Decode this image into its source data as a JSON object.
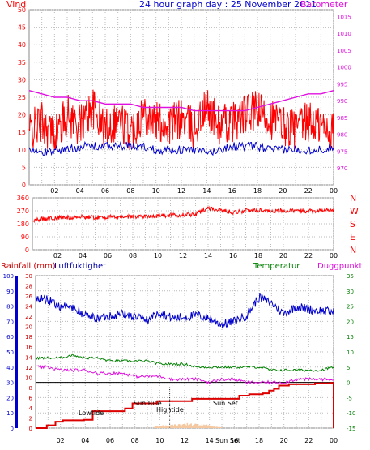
{
  "chart_data": [
    {
      "panel": "wind-barometer",
      "type": "line",
      "title": "24 hour graph day : 25 November 2011",
      "left_label": "Vind",
      "right_label": "Barometer",
      "x_ticks": [
        "02",
        "04",
        "06",
        "08",
        "10",
        "12",
        "14",
        "16",
        "18",
        "20",
        "22",
        "00"
      ],
      "left_ticks": [
        0,
        5,
        10,
        15,
        20,
        25,
        30,
        35,
        40,
        45,
        50
      ],
      "right_ticks": [
        970,
        975,
        980,
        985,
        990,
        995,
        1000,
        1005,
        1010,
        1015
      ],
      "ylim_left": [
        0,
        50
      ],
      "ylim_right": [
        965,
        1017
      ],
      "grid": true,
      "colors": {
        "gust": "#ff0000",
        "wind": "#0000cc",
        "barometer": "#e010e0",
        "left_axis": "#ff0000",
        "right_axis": "#e010e0",
        "title": "#0000cc"
      },
      "series": [
        {
          "key": "gust",
          "x": [
            0,
            1,
            2,
            3,
            4,
            5,
            6,
            7,
            8,
            9,
            10,
            11,
            12,
            13,
            14,
            15,
            16,
            17,
            18,
            19,
            20,
            21,
            22,
            23,
            24
          ],
          "values": [
            15,
            18,
            14,
            20,
            17,
            22,
            16,
            19,
            15,
            21,
            18,
            17,
            19,
            16,
            22,
            17,
            18,
            20,
            21,
            19,
            17,
            16,
            18,
            17,
            15
          ],
          "range": [
            10,
            26
          ]
        },
        {
          "key": "wind",
          "x": [
            0,
            1,
            2,
            3,
            4,
            5,
            6,
            7,
            8,
            9,
            10,
            11,
            12,
            13,
            14,
            15,
            16,
            17,
            18,
            19,
            20,
            21,
            22,
            23,
            24
          ],
          "values": [
            10,
            9,
            10,
            10,
            11,
            11,
            11,
            11,
            11,
            11,
            10,
            10,
            10,
            10,
            9,
            10,
            11,
            11,
            11,
            10,
            10,
            10,
            10,
            10,
            11
          ]
        },
        {
          "key": "barometer",
          "x": [
            0,
            1,
            2,
            3,
            4,
            5,
            6,
            7,
            8,
            9,
            10,
            11,
            12,
            13,
            14,
            15,
            16,
            17,
            18,
            19,
            20,
            21,
            22,
            23,
            24
          ],
          "values": [
            993,
            992,
            991,
            991,
            990,
            990,
            989,
            989,
            989,
            988,
            988,
            988,
            988,
            987,
            987,
            987,
            987,
            987,
            988,
            989,
            990,
            991,
            992,
            992,
            993
          ]
        }
      ]
    },
    {
      "panel": "wind-direction",
      "type": "scatter",
      "x_ticks": [
        "02",
        "04",
        "06",
        "08",
        "10",
        "12",
        "14",
        "16",
        "18",
        "20",
        "22",
        "00"
      ],
      "left_ticks": [
        0,
        90,
        180,
        270,
        360
      ],
      "right_letters": [
        "N",
        "W",
        "S",
        "E",
        "N"
      ],
      "ylim": [
        0,
        360
      ],
      "grid": true,
      "colors": {
        "direction": "#ff0000",
        "axis": "#ff0000"
      },
      "series": [
        {
          "key": "direction",
          "x": [
            0,
            1,
            2,
            3,
            4,
            5,
            6,
            7,
            8,
            9,
            10,
            11,
            12,
            13,
            14,
            15,
            16,
            17,
            18,
            19,
            20,
            21,
            22,
            23,
            24
          ],
          "values": [
            205,
            215,
            220,
            225,
            228,
            225,
            225,
            228,
            230,
            232,
            235,
            238,
            240,
            245,
            290,
            275,
            260,
            270,
            275,
            270,
            270,
            268,
            270,
            272,
            275
          ]
        }
      ]
    },
    {
      "panel": "rain-humidity-temperature",
      "type": "line",
      "left_label": "Rainfall (mm)",
      "left_label2": "Luftfuktighet",
      "right_label": "Temperatur",
      "right_label2": "Duggpunkt",
      "x_ticks": [
        "02",
        "04",
        "06",
        "08",
        "10",
        "12",
        "14",
        "16",
        "18",
        "20",
        "22",
        "00"
      ],
      "humidity_ticks": [
        0,
        10,
        20,
        30,
        40,
        50,
        60,
        70,
        80,
        90,
        100
      ],
      "temp_ticks": [
        -15,
        -10,
        -5,
        0,
        5,
        10,
        15,
        20,
        25,
        30,
        35
      ],
      "rain_ticks": [
        0,
        2,
        4,
        6,
        8,
        10,
        12,
        14,
        16,
        18,
        20,
        22,
        24,
        26,
        28,
        30
      ],
      "ylim_humidity": [
        0,
        100
      ],
      "ylim_temp": [
        -15,
        35
      ],
      "ylim_rain_scale": [
        0,
        30
      ],
      "ylim_rain_lower": [
        0,
        10
      ],
      "annotations": [
        "Lowtide",
        "Sun Rise",
        "Hightide",
        "Sun Set",
        "Sun Set"
      ],
      "colors": {
        "humidity": "#0000cc",
        "temperature": "#008000",
        "dewpoint": "#e010e0",
        "rain": "#dd0000",
        "solar": "#f5c8a0",
        "rainfall_label": "#cc0000",
        "humidity_label": "#0000cc",
        "temp_label": "#008000",
        "dew_label": "#e010e0"
      },
      "series": [
        {
          "key": "humidity",
          "x": [
            0,
            1,
            2,
            3,
            4,
            5,
            6,
            7,
            8,
            9,
            10,
            11,
            12,
            13,
            14,
            15,
            16,
            17,
            18,
            19,
            20,
            21,
            22,
            23,
            24
          ],
          "values": [
            85,
            84,
            80,
            79,
            74,
            72,
            74,
            75,
            73,
            71,
            76,
            72,
            73,
            74,
            72,
            68,
            70,
            74,
            86,
            82,
            75,
            80,
            78,
            77,
            76
          ]
        },
        {
          "key": "temperature",
          "x": [
            0,
            1,
            2,
            3,
            4,
            5,
            6,
            7,
            8,
            9,
            10,
            11,
            12,
            13,
            14,
            15,
            16,
            17,
            18,
            19,
            20,
            21,
            22,
            23,
            24
          ],
          "values": [
            8,
            8,
            8,
            9,
            8,
            8,
            7,
            7,
            7,
            7,
            6,
            6,
            6,
            5,
            5,
            5,
            5,
            5,
            5,
            4,
            4,
            4,
            4,
            4,
            5
          ]
        },
        {
          "key": "dewpoint",
          "x": [
            0,
            1,
            2,
            3,
            4,
            5,
            6,
            7,
            8,
            9,
            10,
            11,
            12,
            13,
            14,
            15,
            16,
            17,
            18,
            19,
            20,
            21,
            22,
            23,
            24
          ],
          "values": [
            5,
            5,
            4,
            4,
            4,
            3,
            3,
            3,
            2,
            2,
            2,
            1,
            1,
            1,
            0,
            1,
            1,
            0,
            0,
            0,
            0,
            1,
            1,
            1,
            1
          ]
        },
        {
          "key": "rain",
          "x": [
            0,
            0.9,
            1.6,
            2.2,
            3.9,
            4.6,
            7.2,
            7.8,
            9.8,
            12.6,
            16.4,
            17.2,
            18.3,
            18.8,
            19.2,
            19.6,
            20.4,
            22.5,
            23.8,
            24
          ],
          "values": [
            0,
            0.6,
            1.4,
            1.7,
            1.8,
            3.7,
            4.3,
            5.4,
            5.9,
            6.4,
            7.1,
            7.4,
            7.6,
            8.2,
            8.6,
            9.3,
            9.6,
            9.8,
            9.9,
            0
          ]
        },
        {
          "key": "solar",
          "x": [
            9.5,
            10,
            10.5,
            11,
            11.5,
            12,
            12.5,
            13,
            13.5,
            14,
            14.5,
            15
          ],
          "values": [
            0.3,
            0.4,
            0.5,
            0.6,
            0.7,
            0.8,
            0.8,
            0.7,
            0.6,
            0.5,
            0.3,
            0.2
          ]
        }
      ]
    }
  ]
}
